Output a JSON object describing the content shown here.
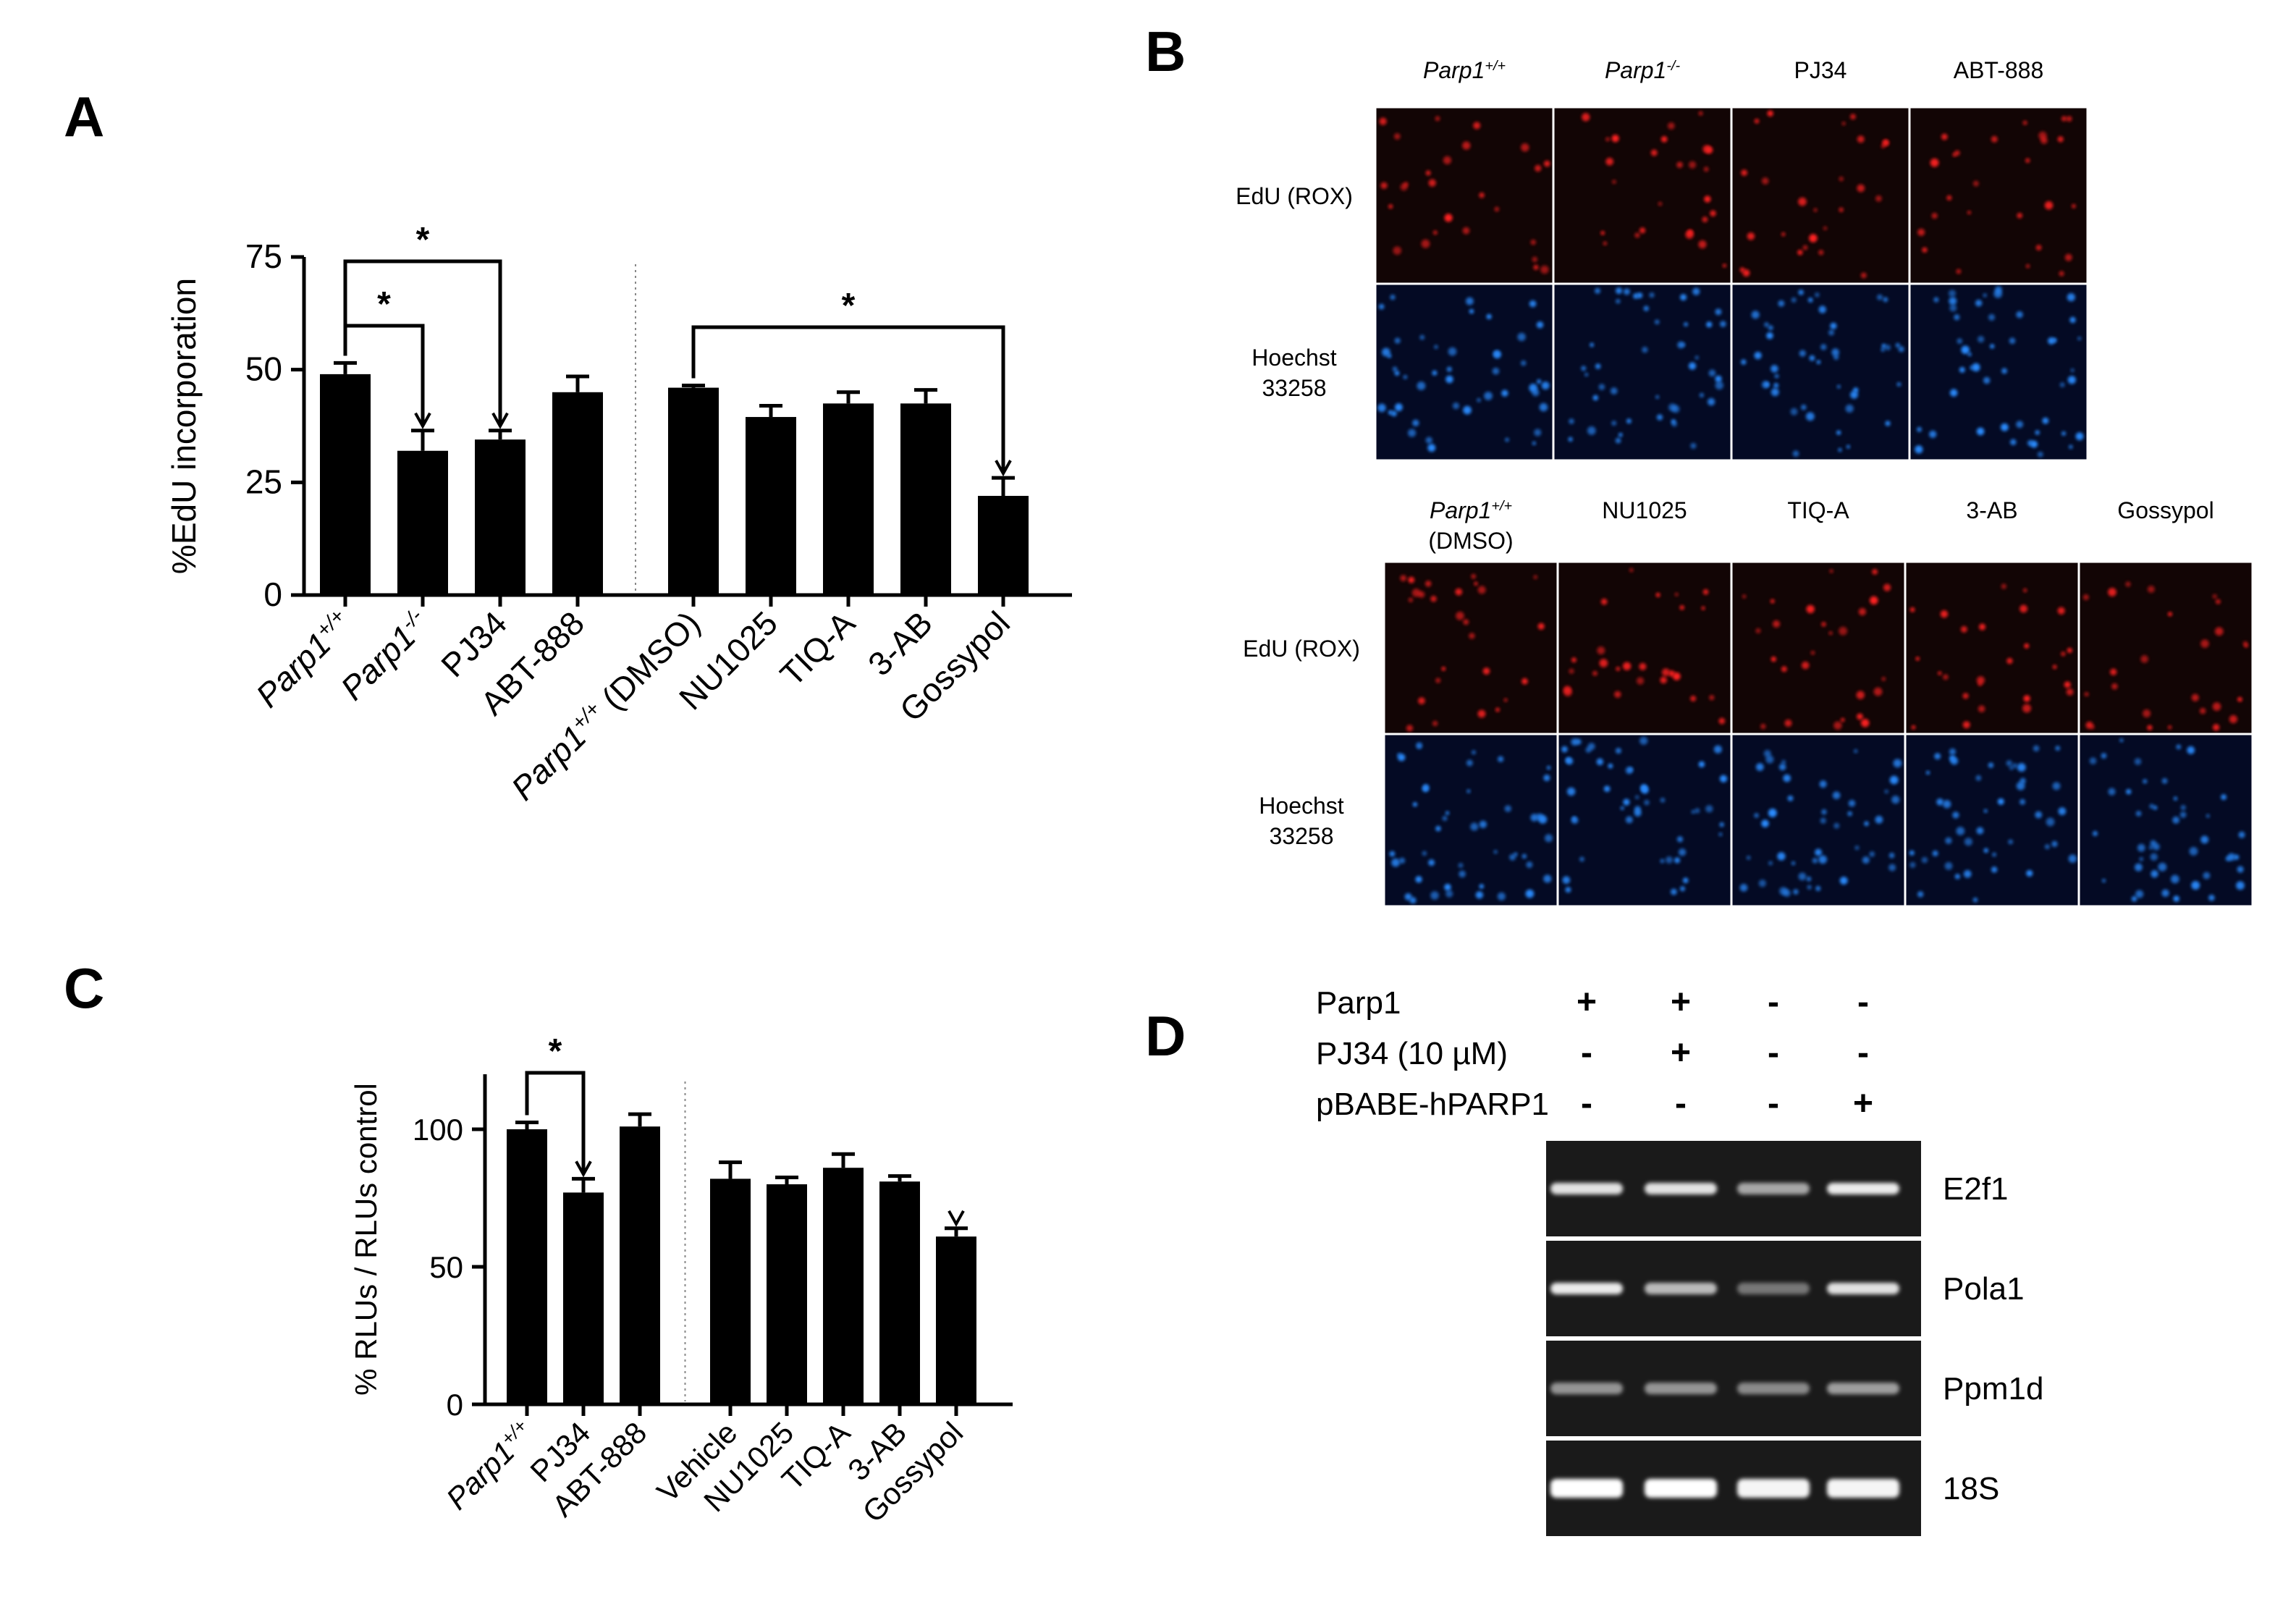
{
  "panels": {
    "A": "A",
    "B": "B",
    "C": "C",
    "D": "D"
  },
  "colors": {
    "bar": "#000000",
    "divider": "#888888",
    "edu": "#ff2020",
    "hoechst": "#2a8cff"
  },
  "chart_data": [
    {
      "panel": "A",
      "type": "bar",
      "ylabel": "%EdU incorporation",
      "ylim": [
        0,
        75
      ],
      "yticks": [
        0,
        25,
        50,
        75
      ],
      "categories": [
        {
          "main": "Parp1",
          "sup": "+/+",
          "suffix": "",
          "italic": true
        },
        {
          "main": "Parp1",
          "sup": "-/-",
          "suffix": "",
          "italic": true
        },
        {
          "main": "PJ34",
          "sup": "",
          "suffix": "",
          "italic": false
        },
        {
          "main": "ABT-888",
          "sup": "",
          "suffix": "",
          "italic": false
        },
        {
          "main": "Parp1",
          "sup": "+/+",
          "suffix": " (DMSO)",
          "italic": true
        },
        {
          "main": "NU1025",
          "sup": "",
          "suffix": "",
          "italic": false
        },
        {
          "main": "TIQ-A",
          "sup": "",
          "suffix": "",
          "italic": false
        },
        {
          "main": "3-AB",
          "sup": "",
          "suffix": "",
          "italic": false
        },
        {
          "main": "Gossypol",
          "sup": "",
          "suffix": "",
          "italic": false
        }
      ],
      "values": [
        49,
        32,
        34.5,
        45,
        46,
        39.5,
        42.5,
        42.5,
        22
      ],
      "errors": [
        2.5,
        4.5,
        2,
        3.5,
        0.5,
        2.5,
        2.5,
        3,
        4
      ],
      "group_break_after": 3,
      "significance": [
        {
          "from": 0,
          "to": 1,
          "label": "*"
        },
        {
          "from": 0,
          "to": 2,
          "label": "*"
        },
        {
          "from": 4,
          "to": 8,
          "label": "*"
        }
      ]
    },
    {
      "panel": "C",
      "type": "bar",
      "ylabel": "% RLUs / RLUs control",
      "ylim": [
        0,
        120
      ],
      "yticks": [
        0,
        50,
        100
      ],
      "categories": [
        {
          "main": "Parp1",
          "sup": "+/+",
          "suffix": "",
          "italic": true
        },
        {
          "main": "PJ34",
          "sup": "",
          "suffix": "",
          "italic": false
        },
        {
          "main": "ABT-888",
          "sup": "",
          "suffix": "",
          "italic": false
        },
        {
          "main": "Vehicle",
          "sup": "",
          "suffix": "",
          "italic": false
        },
        {
          "main": "NU1025",
          "sup": "",
          "suffix": "",
          "italic": false
        },
        {
          "main": "TIQ-A",
          "sup": "",
          "suffix": "",
          "italic": false
        },
        {
          "main": "3-AB",
          "sup": "",
          "suffix": "",
          "italic": false
        },
        {
          "main": "Gossypol",
          "sup": "",
          "suffix": "",
          "italic": false
        }
      ],
      "values": [
        100,
        77,
        101,
        82,
        80,
        86,
        81,
        61
      ],
      "errors": [
        2.5,
        5,
        4.5,
        6,
        2.5,
        5,
        2,
        3
      ],
      "group_break_after": 2,
      "significance": [
        {
          "from": 0,
          "to": 1,
          "label": "*"
        },
        {
          "from": 3,
          "to": 7,
          "label": "*"
        }
      ]
    }
  ],
  "microscopy": {
    "top": {
      "columns": [
        {
          "main": "Parp1",
          "sup": "+/+",
          "italic": true
        },
        {
          "main": "Parp1",
          "sup": "-/-",
          "italic": true
        },
        {
          "main": "PJ34",
          "sup": "",
          "italic": false
        },
        {
          "main": "ABT-888",
          "sup": "",
          "italic": false
        }
      ],
      "rows": [
        {
          "lines": [
            "EdU (ROX)"
          ],
          "stain": "edu"
        },
        {
          "lines": [
            "Hoechst",
            "33258"
          ],
          "stain": "hoechst"
        }
      ]
    },
    "bottom": {
      "columns": [
        {
          "main": "Parp1",
          "sup": "+/+",
          "italic": true,
          "line2": "(DMSO)"
        },
        {
          "main": "NU1025",
          "sup": "",
          "italic": false,
          "line2": ""
        },
        {
          "main": "TIQ-A",
          "sup": "",
          "italic": false,
          "line2": ""
        },
        {
          "main": "3-AB",
          "sup": "",
          "italic": false,
          "line2": ""
        },
        {
          "main": "Gossypol",
          "sup": "",
          "italic": false,
          "line2": ""
        }
      ],
      "rows": [
        {
          "lines": [
            "EdU (ROX)"
          ],
          "stain": "edu"
        },
        {
          "lines": [
            "Hoechst",
            "33258"
          ],
          "stain": "hoechst"
        }
      ]
    }
  },
  "gel": {
    "conditions": [
      {
        "label": "Parp1",
        "lanes": [
          "+",
          "+",
          "-",
          "-"
        ]
      },
      {
        "label": "PJ34 (10 µM)",
        "lanes": [
          "-",
          "+",
          "-",
          "-"
        ]
      },
      {
        "label": "pBABE-hPARP1",
        "lanes": [
          "-",
          "-",
          "-",
          "+"
        ]
      }
    ],
    "genes": [
      {
        "name": "E2f1",
        "intensity": [
          0.85,
          0.85,
          0.55,
          0.9
        ]
      },
      {
        "name": "Pola1",
        "intensity": [
          0.9,
          0.65,
          0.3,
          0.85
        ]
      },
      {
        "name": "Ppm1d",
        "intensity": [
          0.45,
          0.45,
          0.4,
          0.5
        ]
      },
      {
        "name": "18S",
        "intensity": [
          1.0,
          1.0,
          0.95,
          0.95
        ]
      }
    ]
  }
}
